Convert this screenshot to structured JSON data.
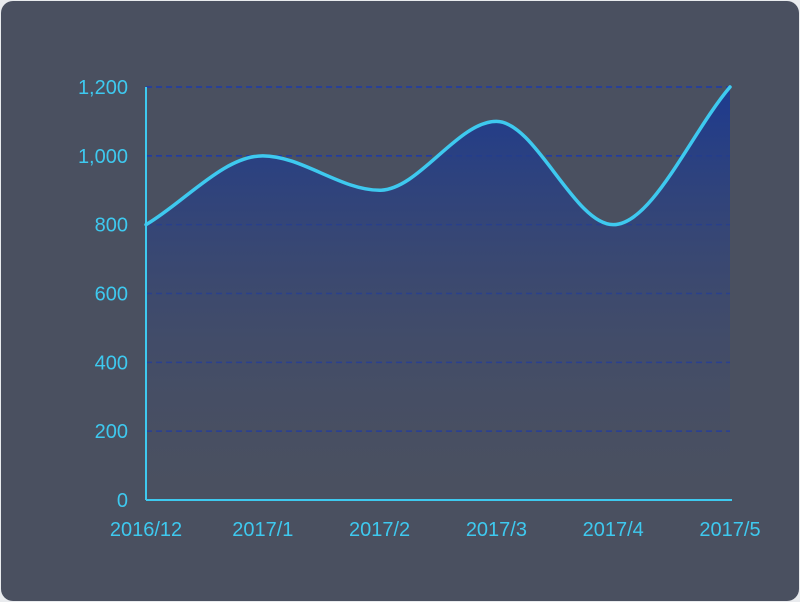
{
  "chart_data": {
    "type": "area",
    "title": "",
    "xlabel": "",
    "ylabel": "",
    "categories": [
      "2016/12",
      "2017/1",
      "2017/2",
      "2017/3",
      "2017/4",
      "2017/5"
    ],
    "series": [
      {
        "values": [
          800,
          1000,
          900,
          1100,
          800,
          1200
        ]
      }
    ],
    "ylim": [
      0,
      1200
    ],
    "yticks": [
      0,
      200,
      400,
      600,
      800,
      1000,
      1200
    ],
    "ytick_labels": [
      "0",
      "200",
      "400",
      "600",
      "800",
      "1,000",
      "1,200"
    ],
    "grid": true,
    "smooth": true,
    "colors": {
      "background": "#4a5060",
      "line": "#3ec9ef",
      "axis": "#3ec9ef",
      "grid": "#1d3aa8",
      "area_top": "#1d3a8f",
      "labels": "#3ec9ef"
    }
  }
}
